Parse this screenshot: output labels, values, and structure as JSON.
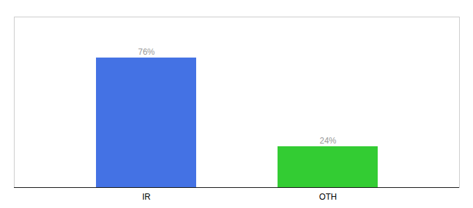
{
  "chart_data": {
    "type": "bar",
    "categories": [
      "IR",
      "OTH"
    ],
    "values": [
      76,
      24
    ],
    "value_labels": [
      "76%",
      "24%"
    ],
    "colors": [
      "#4472e4",
      "#33cc33"
    ],
    "ylim": [
      0,
      100
    ],
    "yticks": [],
    "data_labels": true,
    "tick_labels": "x",
    "grid": false
  }
}
